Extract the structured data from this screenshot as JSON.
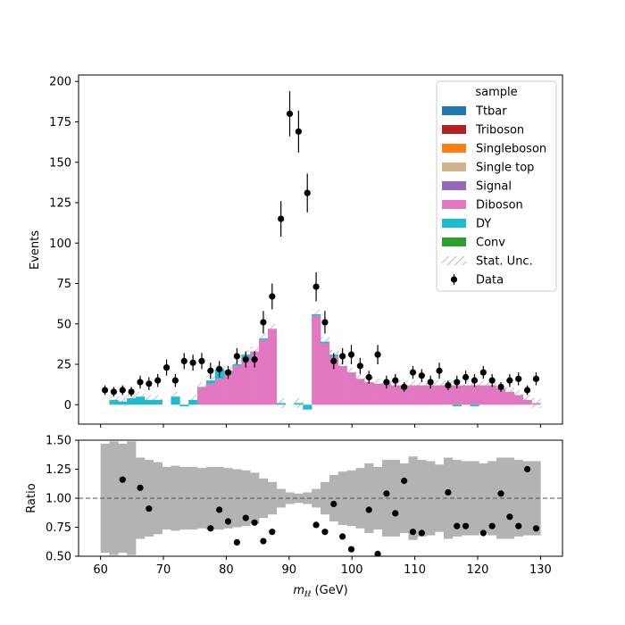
{
  "chart_data": [
    {
      "type": "bar",
      "panel": "main",
      "stacked": true,
      "ylabel": "Events",
      "xlabel": "",
      "xlim": [
        56.5,
        133.5
      ],
      "ylim": [
        -12,
        204
      ],
      "yticks": [
        0,
        25,
        50,
        75,
        100,
        125,
        150,
        175,
        200
      ],
      "xticks": [
        60,
        70,
        80,
        90,
        100,
        110,
        120,
        130
      ],
      "bin_width": 1.4,
      "x": [
        60.7,
        62.1,
        63.5,
        64.9,
        66.3,
        67.7,
        69.1,
        70.5,
        71.9,
        73.3,
        74.7,
        76.1,
        77.5,
        78.9,
        80.3,
        81.7,
        83.1,
        84.5,
        85.9,
        87.3,
        88.7,
        90.1,
        91.5,
        92.9,
        94.3,
        95.7,
        97.1,
        98.5,
        99.9,
        101.3,
        102.7,
        104.1,
        105.5,
        106.9,
        108.3,
        109.7,
        111.1,
        112.5,
        113.9,
        115.3,
        116.7,
        118.1,
        119.5,
        120.9,
        122.3,
        123.7,
        125.1,
        126.5,
        127.9,
        129.3
      ],
      "series": [
        {
          "name": "Ttbar",
          "color": "#1f77b4",
          "values": [
            0,
            0,
            0,
            0,
            0,
            0,
            0,
            0,
            0,
            0,
            0,
            0,
            0,
            0,
            0,
            0,
            0,
            0,
            0,
            0,
            0,
            0,
            0,
            0,
            0,
            0,
            0,
            0,
            0,
            0,
            0,
            0,
            0,
            0,
            0,
            0,
            0,
            0,
            0,
            0,
            0,
            0,
            0,
            0,
            0,
            0,
            0,
            0,
            0,
            0
          ]
        },
        {
          "name": "Triboson",
          "color": "#b22222",
          "values": [
            0,
            0,
            0,
            0,
            0,
            0,
            0,
            0,
            0,
            0,
            0,
            0,
            0,
            0,
            0,
            0,
            0,
            0,
            0,
            0,
            0,
            0,
            0,
            0,
            0,
            0,
            0,
            0,
            0,
            0,
            0,
            0,
            0,
            0,
            0,
            0,
            0,
            0,
            0,
            0,
            0,
            0,
            0,
            0,
            0,
            0,
            0,
            0,
            0,
            0
          ]
        },
        {
          "name": "Singleboson",
          "color": "#ff7f0e",
          "values": [
            0,
            0,
            0,
            0,
            0,
            0,
            0,
            0,
            0,
            0,
            0,
            0,
            0,
            0,
            0,
            0,
            0,
            0,
            0,
            0,
            0,
            0,
            0,
            0,
            0,
            0,
            0,
            0,
            0,
            0,
            0,
            0,
            0,
            0,
            0,
            0,
            0,
            0,
            0,
            0,
            0,
            0,
            0,
            0,
            0,
            0,
            0,
            0,
            0,
            0
          ]
        },
        {
          "name": "Single top",
          "color": "#d2b48c",
          "values": [
            0,
            0,
            0,
            0,
            0,
            0,
            0,
            0,
            0,
            0,
            0,
            0,
            0,
            0,
            0,
            0,
            0,
            0,
            0,
            0,
            0,
            0,
            0,
            0,
            0,
            0,
            0,
            0,
            0,
            0,
            0,
            0,
            0,
            0,
            0,
            0,
            0,
            0,
            0,
            0,
            0,
            0,
            0,
            0,
            0,
            0,
            0,
            0,
            0,
            0
          ]
        },
        {
          "name": "Signal",
          "color": "#9467bd",
          "values": [
            0,
            0,
            0,
            0,
            0,
            0,
            0,
            0,
            0,
            0,
            0,
            0,
            0,
            0,
            0,
            0,
            0,
            0,
            0,
            0,
            0,
            0,
            0,
            0,
            0,
            0,
            0,
            0,
            0,
            0,
            0,
            0,
            0,
            0,
            0,
            0,
            0,
            0,
            0,
            0,
            0,
            0,
            0,
            0,
            0,
            0,
            0,
            0,
            0,
            0
          ]
        },
        {
          "name": "Diboson",
          "color": "#e377c2",
          "values": [
            0,
            0,
            0,
            0,
            0,
            0,
            0,
            0,
            0,
            0,
            0,
            11,
            13,
            16,
            20,
            24,
            28,
            33,
            40,
            47,
            0,
            0,
            0,
            0,
            55,
            38,
            30,
            24,
            20,
            16,
            14,
            13,
            13,
            12,
            12,
            12,
            12,
            12,
            12,
            12,
            12,
            12,
            12,
            12,
            12,
            10,
            8,
            6,
            3,
            1
          ]
        },
        {
          "name": "DY",
          "color": "#17becf",
          "values": [
            0,
            3,
            2,
            4,
            5,
            3,
            3,
            0,
            5,
            -1,
            3,
            0,
            2,
            6,
            1,
            1,
            3,
            0,
            1,
            0,
            1,
            0,
            1,
            -3,
            1,
            1,
            1,
            0,
            0,
            0,
            0,
            0,
            0,
            0,
            0,
            0,
            0,
            0,
            0,
            0,
            -1,
            0,
            -1,
            0,
            0,
            0,
            0,
            0,
            0,
            0
          ]
        },
        {
          "name": "Conv",
          "color": "#2ca02c",
          "values": [
            0,
            0,
            0,
            0,
            0,
            0,
            0,
            0,
            0,
            0,
            0,
            0,
            0,
            0,
            0,
            0,
            0,
            0,
            0,
            0,
            0,
            0,
            0,
            0,
            0,
            0,
            0,
            0,
            0,
            0,
            0,
            0,
            0,
            0,
            0,
            0,
            0,
            0,
            0,
            0,
            0,
            0,
            0,
            0,
            0,
            0,
            0,
            0,
            0,
            0
          ]
        }
      ],
      "stat_unc": [
        3,
        3,
        3,
        3,
        3,
        3,
        3,
        3,
        3,
        3,
        3,
        3,
        3,
        3,
        3,
        3,
        3,
        3,
        3,
        3,
        3,
        3,
        3,
        3,
        3,
        3,
        3,
        3,
        3,
        3,
        3,
        3,
        3,
        3,
        3,
        3,
        3,
        3,
        3,
        3,
        3,
        3,
        3,
        3,
        3,
        3,
        3,
        3,
        3,
        3
      ],
      "data_points": {
        "name": "Data",
        "x": [
          60.7,
          62.1,
          63.5,
          64.9,
          66.3,
          67.7,
          69.1,
          70.5,
          71.9,
          73.3,
          74.7,
          76.1,
          77.5,
          78.9,
          80.3,
          81.7,
          83.1,
          84.5,
          85.9,
          87.3,
          88.7,
          90.1,
          91.5,
          92.9,
          94.3,
          95.7,
          97.1,
          98.5,
          99.9,
          101.3,
          102.7,
          104.1,
          105.5,
          106.9,
          108.3,
          109.7,
          111.1,
          112.5,
          113.9,
          115.3,
          116.7,
          118.1,
          119.5,
          120.9,
          122.3,
          123.7,
          125.1,
          126.5,
          127.9,
          129.3
        ],
        "y": [
          9,
          8,
          9,
          8,
          14,
          13,
          15,
          23,
          15,
          27,
          26,
          27,
          21,
          22,
          20,
          30,
          28,
          28,
          51,
          67,
          115,
          180,
          169,
          131,
          73,
          51,
          27,
          30,
          31,
          24,
          17,
          31,
          14,
          15,
          11,
          20,
          18,
          14,
          21,
          12,
          14,
          17,
          15,
          20,
          15,
          11,
          15,
          16,
          9,
          16
        ],
        "yerr": [
          3,
          3,
          3,
          3,
          4,
          4,
          4,
          5,
          4,
          5,
          5,
          5,
          5,
          5,
          4,
          5,
          5,
          5,
          7,
          8,
          11,
          14,
          13,
          12,
          9,
          7,
          5,
          5,
          6,
          5,
          4,
          6,
          4,
          4,
          3,
          4,
          4,
          4,
          5,
          3,
          4,
          4,
          4,
          4,
          4,
          3,
          4,
          4,
          3,
          4
        ]
      },
      "legend": {
        "title": "sample",
        "placement": "upper right",
        "entries": [
          {
            "label": "Ttbar",
            "kind": "patch",
            "color": "#1f77b4"
          },
          {
            "label": "Triboson",
            "kind": "patch",
            "color": "#b22222"
          },
          {
            "label": "Singleboson",
            "kind": "patch",
            "color": "#ff7f0e"
          },
          {
            "label": "Single top",
            "kind": "patch",
            "color": "#d2b48c"
          },
          {
            "label": "Signal",
            "kind": "patch",
            "color": "#9467bd"
          },
          {
            "label": "Diboson",
            "kind": "patch",
            "color": "#e377c2"
          },
          {
            "label": "DY",
            "kind": "patch",
            "color": "#17becf"
          },
          {
            "label": "Conv",
            "kind": "patch",
            "color": "#2ca02c"
          },
          {
            "label": "Stat. Unc.",
            "kind": "hatch",
            "color": "#999999"
          },
          {
            "label": "Data",
            "kind": "errorbar",
            "color": "#000000"
          }
        ]
      }
    },
    {
      "type": "scatter",
      "panel": "ratio",
      "ylabel": "Ratio",
      "xlabel": "m_ℓℓ (GeV)",
      "xlabel_parts": {
        "m": "m",
        "sub": "ℓℓ",
        "rest": " (GeV)"
      },
      "xlim": [
        56.5,
        133.5
      ],
      "ylim": [
        0.5,
        1.5
      ],
      "yticks": [
        0.5,
        0.75,
        1.0,
        1.25,
        1.5
      ],
      "ytick_labels": [
        "0.50",
        "0.75",
        "1.00",
        "1.25",
        "1.50"
      ],
      "xticks": [
        60,
        70,
        80,
        90,
        100,
        110,
        120,
        130
      ],
      "reference_line": 1.0,
      "band_x": [
        60.7,
        62.1,
        63.5,
        64.9,
        66.3,
        67.7,
        69.1,
        70.5,
        71.9,
        73.3,
        74.7,
        76.1,
        77.5,
        78.9,
        80.3,
        81.7,
        83.1,
        84.5,
        85.9,
        87.3,
        88.7,
        90.1,
        91.5,
        92.9,
        94.3,
        95.7,
        97.1,
        98.5,
        99.9,
        101.3,
        102.7,
        104.1,
        105.5,
        106.9,
        108.3,
        109.7,
        111.1,
        112.5,
        113.9,
        115.3,
        116.7,
        118.1,
        119.5,
        120.9,
        122.3,
        123.7,
        125.1,
        126.5,
        127.9,
        129.3
      ],
      "band_half_width": [
        0.47,
        0.49,
        0.47,
        0.49,
        0.35,
        0.33,
        0.31,
        0.27,
        0.28,
        0.27,
        0.27,
        0.26,
        0.27,
        0.27,
        0.26,
        0.25,
        0.24,
        0.22,
        0.17,
        0.14,
        0.08,
        0.05,
        0.04,
        0.05,
        0.08,
        0.14,
        0.2,
        0.23,
        0.24,
        0.26,
        0.3,
        0.27,
        0.33,
        0.33,
        0.3,
        0.36,
        0.33,
        0.32,
        0.29,
        0.35,
        0.33,
        0.32,
        0.32,
        0.3,
        0.32,
        0.35,
        0.35,
        0.33,
        0.32,
        0.32
      ],
      "x": [
        63.5,
        66.3,
        67.7,
        77.5,
        78.9,
        80.3,
        81.7,
        83.1,
        84.5,
        85.9,
        87.3,
        94.3,
        95.7,
        97.1,
        98.5,
        99.9,
        102.7,
        104.1,
        105.5,
        106.9,
        108.3,
        109.7,
        111.1,
        115.3,
        116.7,
        118.1,
        120.9,
        122.3,
        123.7,
        125.1,
        126.5,
        127.9,
        129.3
      ],
      "y": [
        1.16,
        1.09,
        0.91,
        0.74,
        0.9,
        0.8,
        0.62,
        0.83,
        0.79,
        0.63,
        0.71,
        0.77,
        0.71,
        0.95,
        0.67,
        0.56,
        0.9,
        0.52,
        1.04,
        0.87,
        1.15,
        0.71,
        0.7,
        1.05,
        0.76,
        0.76,
        0.7,
        0.76,
        1.04,
        0.84,
        0.76,
        1.25,
        0.74
      ]
    }
  ]
}
